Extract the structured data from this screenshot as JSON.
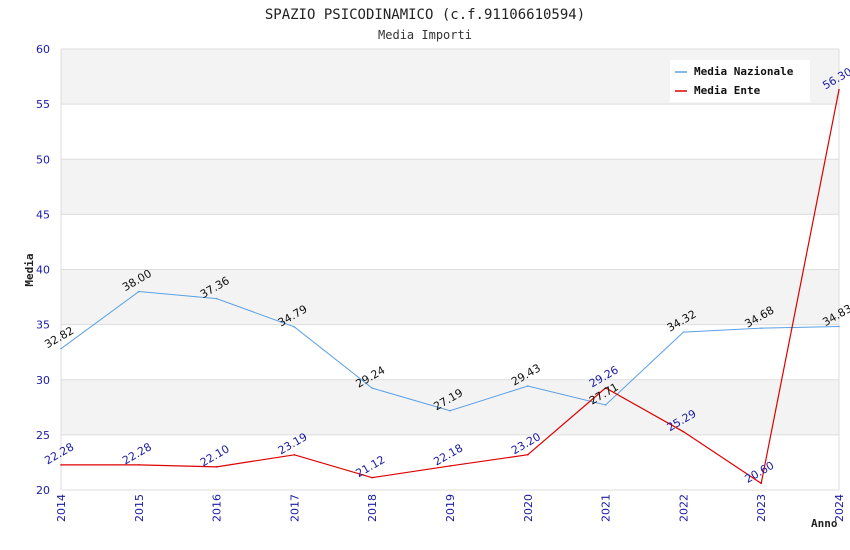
{
  "chart_data": {
    "type": "line",
    "title": "SPAZIO PSICODINAMICO (c.f.91106610594)",
    "subtitle": "Media Importi",
    "xlabel": "Anno",
    "ylabel": "Media",
    "ylim": [
      20,
      60
    ],
    "yticks": [
      "20",
      "25",
      "30",
      "35",
      "40",
      "45",
      "50",
      "55",
      "60"
    ],
    "categories": [
      "2014",
      "2015",
      "2016",
      "2017",
      "2018",
      "2019",
      "2020",
      "2021",
      "2022",
      "2023",
      "2024"
    ],
    "legend_position": "top-right",
    "grid": true,
    "series": [
      {
        "name": "Media Nazionale",
        "color": "#5aa0e6",
        "label_color": "#111111",
        "values": [
          32.82,
          38.0,
          37.36,
          34.79,
          29.24,
          27.19,
          29.43,
          27.71,
          34.32,
          34.68,
          34.83
        ],
        "labels": [
          "32.82",
          "38.00",
          "37.36",
          "34.79",
          "29.24",
          "27.19",
          "29.43",
          "27.71",
          "34.32",
          "34.68",
          "34.83"
        ]
      },
      {
        "name": "Media Ente",
        "color": "#dd0000",
        "label_color": "#1a1aa6",
        "values": [
          22.28,
          22.28,
          22.1,
          23.19,
          21.12,
          22.18,
          23.2,
          29.26,
          25.29,
          20.6,
          56.3
        ],
        "labels": [
          "22.28",
          "22.28",
          "22.10",
          "23.19",
          "21.12",
          "22.18",
          "23.20",
          "29.26",
          "25.29",
          "20.60",
          "56.30"
        ]
      }
    ]
  }
}
